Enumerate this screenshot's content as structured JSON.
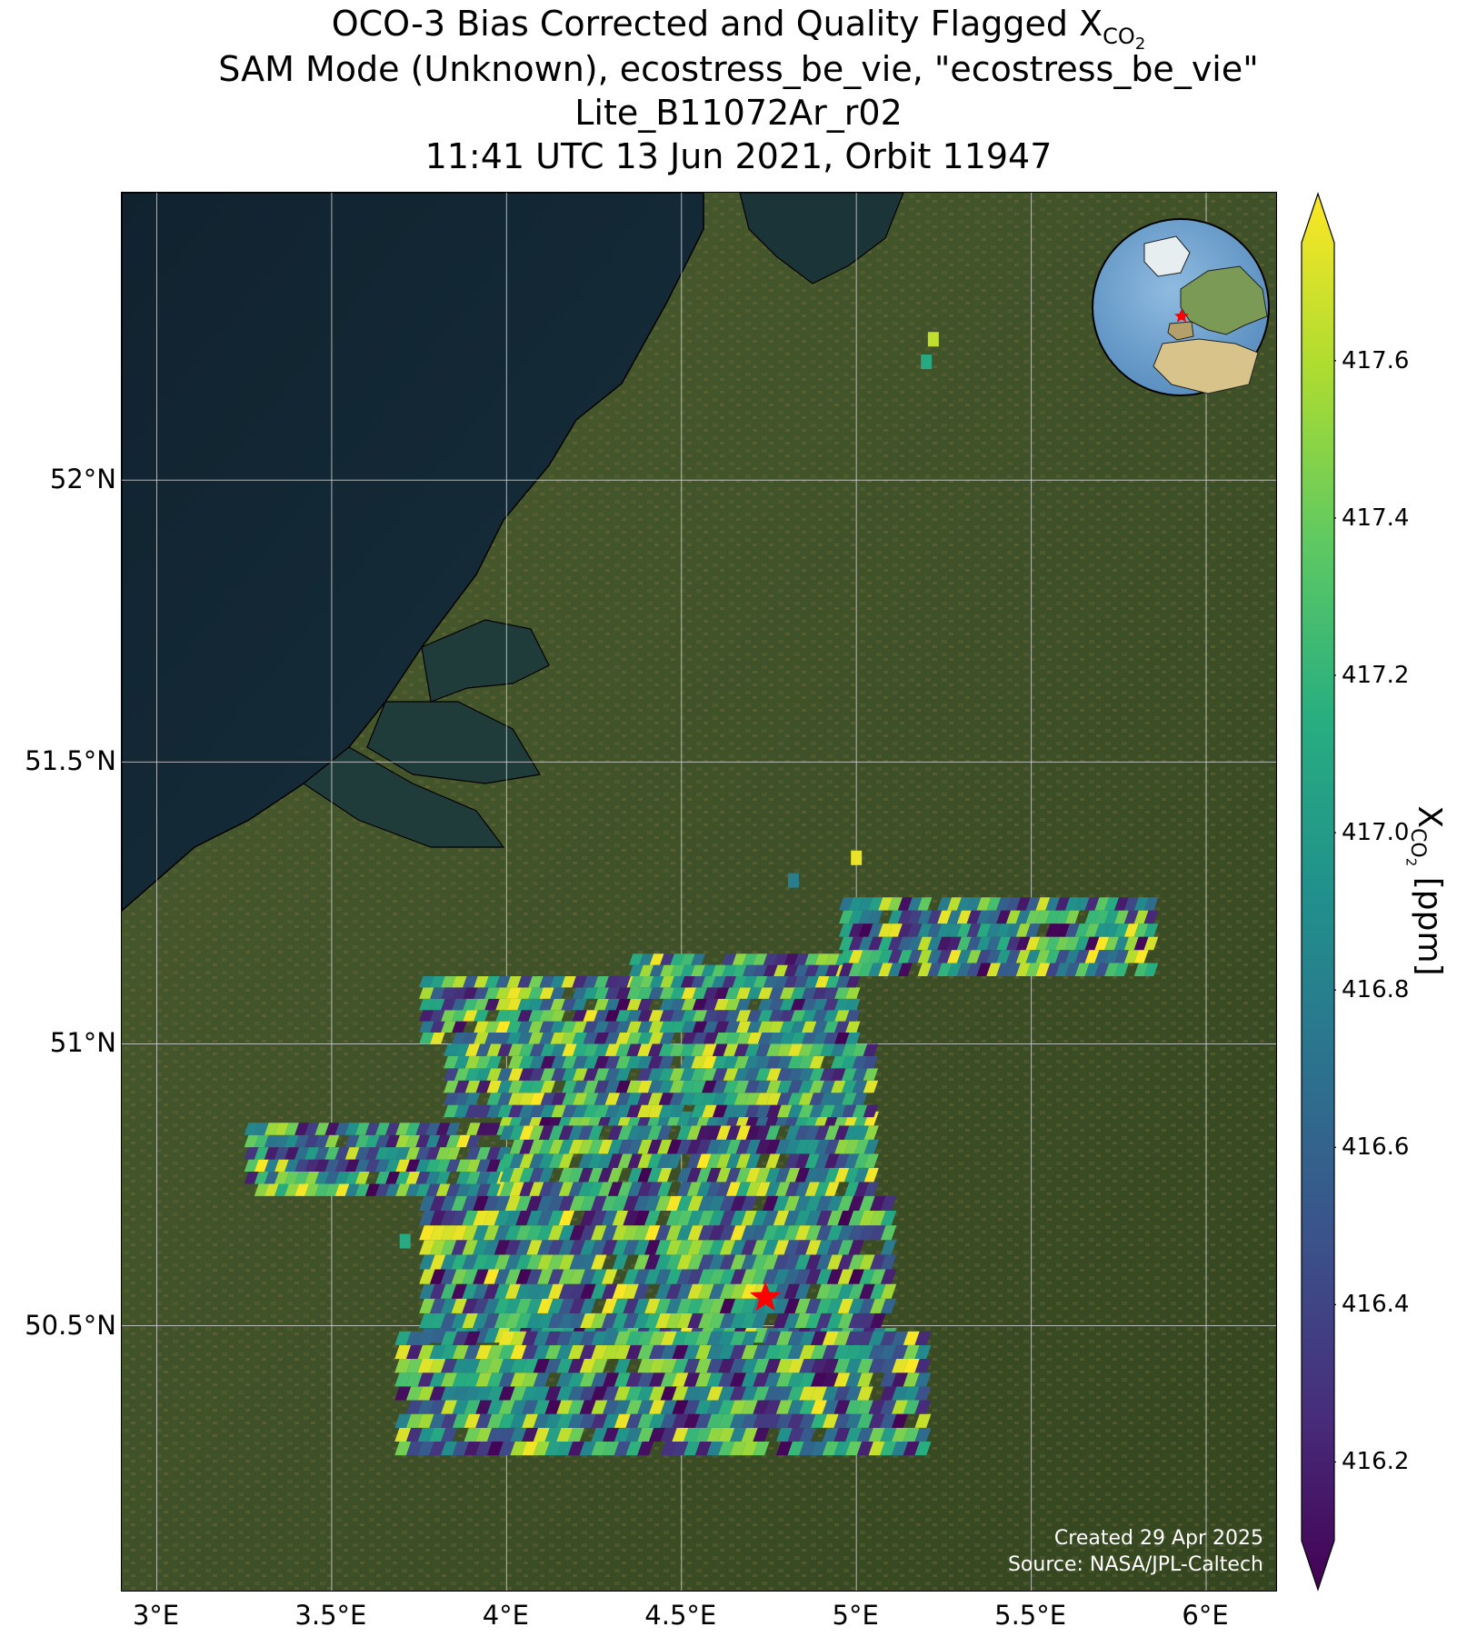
{
  "title": {
    "line1_prefix": "OCO-3 Bias Corrected and Quality Flagged X",
    "line1_sub": "CO",
    "line1_subsub": "2",
    "line2": "SAM Mode (Unknown), ecostress_be_vie, \"ecostress_be_vie\"",
    "line3": "Lite_B11072Ar_r02",
    "line4": "11:41 UTC 13 Jun 2021, Orbit 11947"
  },
  "map": {
    "lon_range": [
      2.9,
      6.2
    ],
    "lat_range": [
      50.03,
      52.51
    ],
    "x_ticks": [
      {
        "value": 3.0,
        "label": "3°E"
      },
      {
        "value": 3.5,
        "label": "3.5°E"
      },
      {
        "value": 4.0,
        "label": "4°E"
      },
      {
        "value": 4.5,
        "label": "4.5°E"
      },
      {
        "value": 5.0,
        "label": "5°E"
      },
      {
        "value": 5.5,
        "label": "5.5°E"
      },
      {
        "value": 6.0,
        "label": "6°E"
      }
    ],
    "y_ticks": [
      {
        "value": 52.0,
        "label": "52°N"
      },
      {
        "value": 51.5,
        "label": "51.5°N"
      },
      {
        "value": 51.0,
        "label": "51°N"
      },
      {
        "value": 50.5,
        "label": "50.5°N"
      }
    ],
    "target_lon": 4.74,
    "target_lat": 50.55,
    "target_marker": "red-star",
    "grid": true,
    "basemap": "satellite imagery",
    "colors": {
      "sea": "#13283a",
      "land": "#3f5128",
      "grid": "#d8d8d8",
      "target": "#ff0000"
    }
  },
  "attribution": {
    "created": "Created 29 Apr 2025",
    "source": "Source: NASA/JPL-Caltech"
  },
  "colorbar": {
    "colormap": "viridis",
    "min": 416.1,
    "max": 417.75,
    "extend": "both",
    "ticks": [
      {
        "value": 416.2,
        "label": "416.2"
      },
      {
        "value": 416.4,
        "label": "416.4"
      },
      {
        "value": 416.6,
        "label": "416.6"
      },
      {
        "value": 416.8,
        "label": "416.8"
      },
      {
        "value": 417.0,
        "label": "417.0"
      },
      {
        "value": 417.2,
        "label": "417.2"
      },
      {
        "value": 417.4,
        "label": "417.4"
      },
      {
        "value": 417.6,
        "label": "417.6"
      }
    ],
    "label_prefix": "X",
    "label_sub": "CO",
    "label_subsub": "2",
    "label_suffix": " [ppm]"
  },
  "inset_globe": {
    "center": "Europe / North Atlantic",
    "marker": "red-star"
  },
  "chart_data": {
    "type": "heatmap",
    "title": "OCO-3 Bias Corrected and Quality Flagged XCO2",
    "subtitle": "SAM Mode (Unknown), ecostress_be_vie, \"ecostress_be_vie\" — Lite_B11072Ar_r02 — 11:41 UTC 13 Jun 2021, Orbit 11947",
    "xlabel": "",
    "ylabel": "",
    "xlim": [
      2.9,
      6.2
    ],
    "ylim": [
      50.03,
      52.51
    ],
    "value_label": "XCO2 [ppm]",
    "value_range": [
      416.1,
      417.75
    ],
    "swaths": [
      {
        "lon_start": 3.25,
        "lon_end": 4.0,
        "lat_south": 50.73,
        "lat_north": 50.86,
        "skew": 0.0,
        "rows": 6,
        "cols": 26
      },
      {
        "lon_start": 3.98,
        "lon_end": 5.05,
        "lat_south": 50.73,
        "lat_north": 50.88,
        "skew": 0.0,
        "rows": 6,
        "cols": 38
      },
      {
        "lon_start": 3.82,
        "lon_end": 5.05,
        "lat_south": 50.87,
        "lat_north": 51.0,
        "skew": 0.0,
        "rows": 6,
        "cols": 40
      },
      {
        "lon_start": 3.75,
        "lon_end": 5.0,
        "lat_south": 51.0,
        "lat_north": 51.12,
        "skew": 0.0,
        "rows": 6,
        "cols": 40
      },
      {
        "lon_start": 4.35,
        "lon_end": 5.0,
        "lat_south": 51.1,
        "lat_north": 51.16,
        "skew": 0.0,
        "rows": 3,
        "cols": 22
      },
      {
        "lon_start": 4.95,
        "lon_end": 5.85,
        "lat_south": 51.12,
        "lat_north": 51.26,
        "skew": 0.0,
        "rows": 6,
        "cols": 32
      },
      {
        "lon_start": 3.75,
        "lon_end": 5.1,
        "lat_south": 50.47,
        "lat_north": 50.73,
        "skew": 0.0,
        "rows": 10,
        "cols": 44
      },
      {
        "lon_start": 3.68,
        "lon_end": 5.2,
        "lat_south": 50.27,
        "lat_north": 50.49,
        "skew": 0.0,
        "rows": 9,
        "cols": 46
      }
    ],
    "isolated_soundings": [
      {
        "lon": 5.22,
        "lat": 52.25,
        "value": 417.6
      },
      {
        "lon": 5.2,
        "lat": 52.21,
        "value": 417.1
      },
      {
        "lon": 4.82,
        "lat": 51.29,
        "value": 416.8
      },
      {
        "lon": 3.71,
        "lat": 50.65,
        "value": 417.1
      },
      {
        "lon": 5.0,
        "lat": 51.33,
        "value": 417.7
      }
    ],
    "target": {
      "lon": 4.74,
      "lat": 50.55
    }
  }
}
